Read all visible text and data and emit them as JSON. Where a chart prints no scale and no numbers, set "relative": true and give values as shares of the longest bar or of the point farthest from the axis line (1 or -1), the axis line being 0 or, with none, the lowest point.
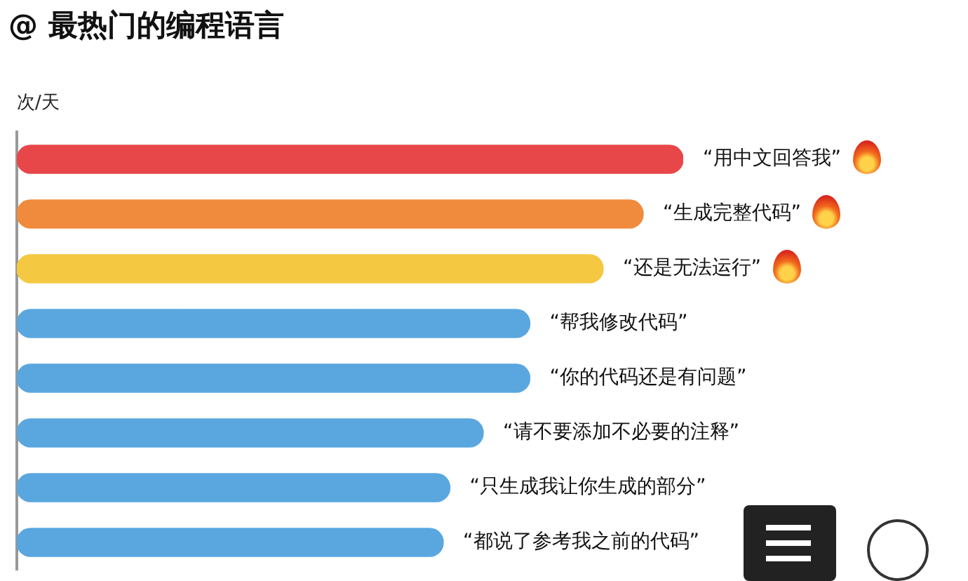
{
  "chart_data": {
    "type": "bar",
    "orientation": "horizontal",
    "relative": true,
    "title": "@ 最热门的编程语言",
    "ylabel": "次/天",
    "categories": [
      null,
      null,
      null,
      null,
      null,
      null,
      null,
      null
    ],
    "values": [
      1,
      0.94,
      0.88,
      0.77,
      0.77,
      0.7,
      0.65,
      0.64
    ],
    "annotations": [
      {
        "text": "“用中文回答我”",
        "x": 1
      },
      {
        "text": "“生成完整代码”",
        "x": 0.94
      },
      {
        "text": "“还是无法运行”",
        "x": 0.88
      },
      {
        "text": "“帮我修改代码”",
        "x": 0.77
      },
      {
        "text": "“你的代码还是有问题”",
        "x": 0.77
      },
      {
        "text": "“请不要添加不必要的注释”",
        "x": 0.7
      },
      {
        "text": "“只生成我让你生成的部分”",
        "x": 0.65
      },
      {
        "text": "“都说了参考我之前的代码”",
        "x": 0.64
      }
    ],
    "colors": [
      "#e8474a",
      "#f08a3c",
      "#f5c842",
      "#5aa7e0",
      "#5aa7e0",
      "#5aa7e0",
      "#5aa7e0",
      "#5aa7e0"
    ],
    "grid": false,
    "legend": false
  }
}
